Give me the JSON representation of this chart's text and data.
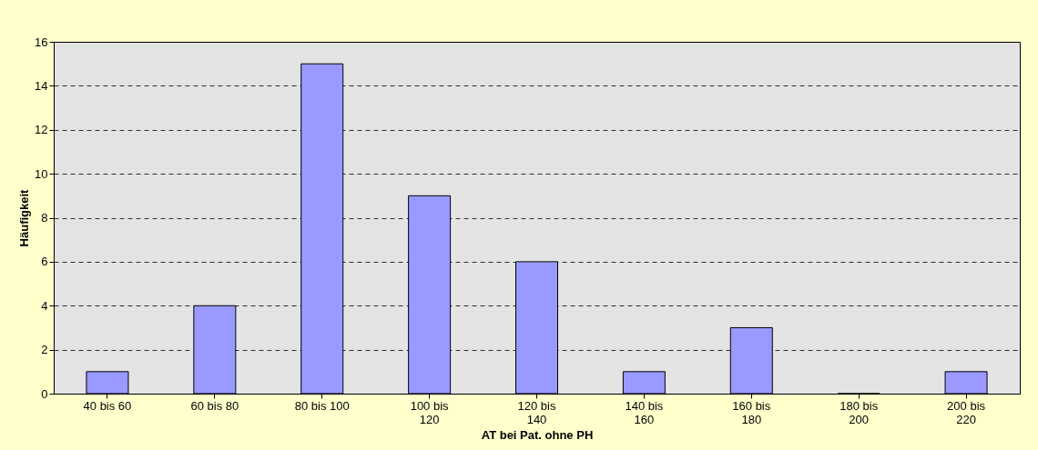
{
  "chart_data": {
    "type": "bar",
    "categories": [
      "40 bis 60",
      "60 bis 80",
      "80 bis 100",
      "100 bis 120",
      "120 bis 140",
      "140 bis 160",
      "160 bis 180",
      "180 bis 200",
      "200 bis 220"
    ],
    "values": [
      1,
      4,
      15,
      9,
      6,
      1,
      3,
      0,
      1
    ],
    "color": "#9999ff",
    "xlabel": "AT bei Pat. ohne PH",
    "ylabel": "Häufigkeit",
    "ylim": [
      0,
      16
    ],
    "yticks": [
      0,
      2,
      4,
      6,
      8,
      10,
      12,
      14,
      16
    ],
    "grid": "y"
  }
}
